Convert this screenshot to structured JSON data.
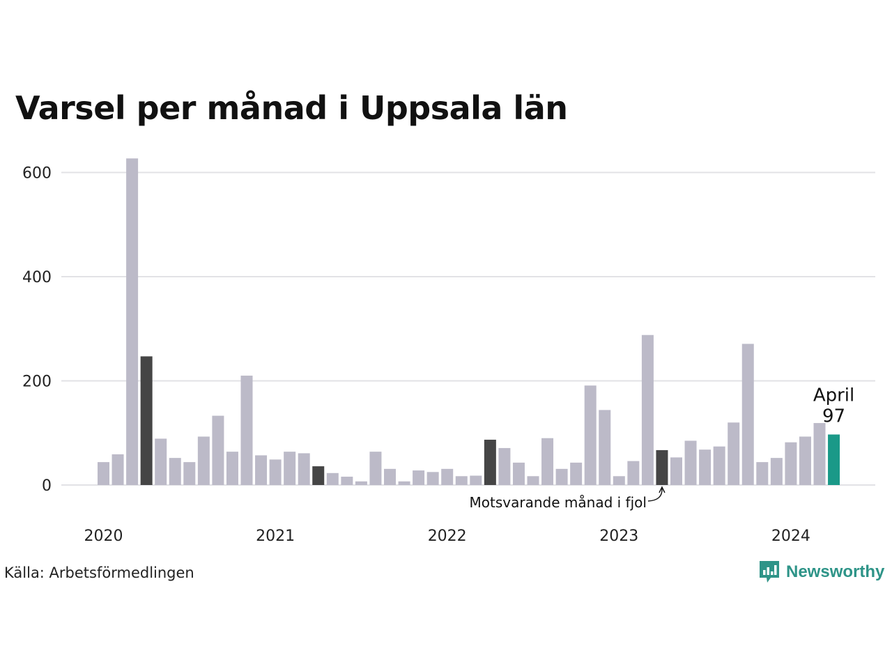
{
  "title": "Varsel per månad i Uppsala län",
  "source": "Källa: Arbetsförmedlingen",
  "brand": {
    "name": "Newsworthy",
    "color": "#2e9488",
    "icon": "newsworthy-logo-icon"
  },
  "colors": {
    "bar": "#bcbac8",
    "highlight": "#454545",
    "current": "#1a9988",
    "grid": "#e2e2e6",
    "text": "#222222"
  },
  "chart_data": {
    "type": "bar",
    "title": "Varsel per månad i Uppsala län",
    "ylim": [
      0,
      640
    ],
    "yticks": [
      0,
      200,
      400,
      600
    ],
    "grid": true,
    "xlabels": [
      {
        "index": 0,
        "label": "2020"
      },
      {
        "index": 12,
        "label": "2021"
      },
      {
        "index": 24,
        "label": "2022"
      },
      {
        "index": 36,
        "label": "2023"
      },
      {
        "index": 48,
        "label": "2024"
      }
    ],
    "values": [
      44,
      59,
      627,
      247,
      89,
      52,
      44,
      93,
      133,
      64,
      210,
      57,
      49,
      64,
      61,
      36,
      23,
      16,
      7,
      64,
      31,
      7,
      28,
      25,
      31,
      17,
      18,
      87,
      71,
      43,
      17,
      90,
      31,
      43,
      191,
      144,
      17,
      46,
      288,
      67,
      53,
      85,
      68,
      74,
      120,
      271,
      44,
      52,
      82,
      93,
      119,
      97
    ],
    "highlight_indices": [
      3,
      15,
      27,
      39
    ],
    "current_index": 51,
    "annotations": {
      "current_month": "April",
      "current_value": "97",
      "last_year_label": "Motsvarande månad i fjol"
    }
  }
}
